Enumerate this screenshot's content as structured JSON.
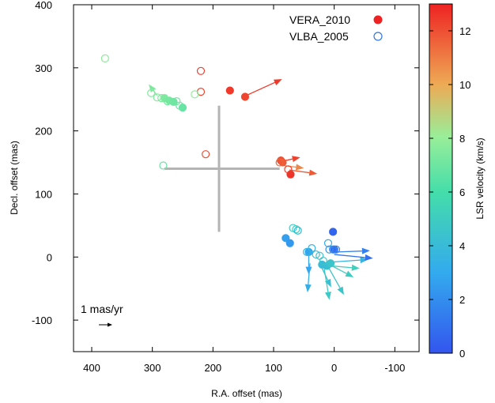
{
  "chart_data": {
    "type": "scatter",
    "xlabel": "R.A. offset (mas)",
    "ylabel": "Decl. offset (mas)",
    "xlim": [
      430,
      -140
    ],
    "ylim": [
      -150,
      400
    ],
    "xticks": [
      400,
      300,
      200,
      100,
      0,
      -100
    ],
    "yticks": [
      -100,
      0,
      100,
      200,
      300,
      400
    ],
    "xtick_labels": [
      "400",
      "300",
      "200",
      "100",
      "0",
      "-100"
    ],
    "ytick_labels": [
      "-100",
      "0",
      "100",
      "200",
      "300",
      "400"
    ],
    "colorbar": {
      "label": "LSR velocity (km/s)",
      "range": [
        0,
        13
      ],
      "ticks": [
        0,
        2,
        4,
        6,
        8,
        10,
        12
      ],
      "tick_labels": [
        "0",
        "2",
        "4",
        "6",
        "8",
        "10",
        "12"
      ]
    },
    "legend": {
      "position": "top-right",
      "entries": [
        {
          "label": "VERA_2010",
          "marker": "filled-circle",
          "color": "#ee2222"
        },
        {
          "label": "VLBA_2005",
          "marker": "open-circle",
          "color": "#3377dd"
        }
      ]
    },
    "scale_arrow": {
      "label": "1 mas/yr",
      "vector_mas_per_yr": 1
    },
    "cross": {
      "center": [
        190,
        140
      ],
      "ra_range": [
        280,
        90
      ],
      "dec_range": [
        40,
        240
      ],
      "color": "#b4b4b4"
    },
    "series": [
      {
        "name": "VERA_2010",
        "marker": "filled",
        "points": [
          {
            "x": 172,
            "y": 264,
            "v": 12.5
          },
          {
            "x": 147,
            "y": 254,
            "v": 12.2
          },
          {
            "x": 88,
            "y": 153,
            "v": 12.0
          },
          {
            "x": 85,
            "y": 150,
            "v": 11.8
          },
          {
            "x": 72,
            "y": 131,
            "v": 12.6
          },
          {
            "x": 80,
            "y": 30,
            "v": 2.6
          },
          {
            "x": 73,
            "y": 22,
            "v": 2.4
          },
          {
            "x": 42,
            "y": 8,
            "v": 2.8
          },
          {
            "x": 2,
            "y": 40,
            "v": 0.6
          },
          {
            "x": 0,
            "y": 12,
            "v": 0.8
          },
          {
            "x": 280,
            "y": 252,
            "v": 7.4
          },
          {
            "x": 272,
            "y": 248,
            "v": 7.2
          },
          {
            "x": 265,
            "y": 246,
            "v": 7.0
          },
          {
            "x": 250,
            "y": 237,
            "v": 6.8
          },
          {
            "x": 12,
            "y": -14,
            "v": 4.2
          },
          {
            "x": 6,
            "y": -10,
            "v": 4.5
          },
          {
            "x": 20,
            "y": -12,
            "v": 4.0
          }
        ]
      },
      {
        "name": "VLBA_2005",
        "marker": "open",
        "points": [
          {
            "x": 378,
            "y": 315,
            "v": 7.8
          },
          {
            "x": 220,
            "y": 295,
            "v": 12.4
          },
          {
            "x": 220,
            "y": 262,
            "v": 12.2
          },
          {
            "x": 302,
            "y": 260,
            "v": 7.6
          },
          {
            "x": 292,
            "y": 253,
            "v": 7.6
          },
          {
            "x": 285,
            "y": 252,
            "v": 7.4
          },
          {
            "x": 275,
            "y": 247,
            "v": 7.2
          },
          {
            "x": 260,
            "y": 247,
            "v": 7.1
          },
          {
            "x": 255,
            "y": 240,
            "v": 7.0
          },
          {
            "x": 230,
            "y": 258,
            "v": 7.9
          },
          {
            "x": 212,
            "y": 163,
            "v": 12.0
          },
          {
            "x": 282,
            "y": 145,
            "v": 6.8
          },
          {
            "x": 90,
            "y": 150,
            "v": 11.5
          },
          {
            "x": 76,
            "y": 139,
            "v": 12.4
          },
          {
            "x": 68,
            "y": 46,
            "v": 4.8
          },
          {
            "x": 63,
            "y": 44,
            "v": 5.2
          },
          {
            "x": 60,
            "y": 42,
            "v": 3.8
          },
          {
            "x": 45,
            "y": 8,
            "v": 3.6
          },
          {
            "x": 37,
            "y": 14,
            "v": 3.4
          },
          {
            "x": 30,
            "y": 4,
            "v": 4.0
          },
          {
            "x": 24,
            "y": 2,
            "v": 4.4
          },
          {
            "x": 18,
            "y": -6,
            "v": 4.6
          },
          {
            "x": 10,
            "y": 22,
            "v": 3.0
          },
          {
            "x": 8,
            "y": 12,
            "v": 2.2
          },
          {
            "x": 2,
            "y": 12,
            "v": 1.8
          },
          {
            "x": -3,
            "y": 12,
            "v": 1.4
          }
        ]
      }
    ],
    "motions": [
      {
        "x": 150,
        "y": 254,
        "dx": -64,
        "dy": 28,
        "v": 12.5
      },
      {
        "x": 86,
        "y": 152,
        "dx": -30,
        "dy": 6,
        "v": 12.3
      },
      {
        "x": 84,
        "y": 145,
        "dx": -34,
        "dy": -4,
        "v": 10.8
      },
      {
        "x": 74,
        "y": 138,
        "dx": -46,
        "dy": -6,
        "v": 11.8
      },
      {
        "x": 292,
        "y": 256,
        "dx": 14,
        "dy": 18,
        "v": 7.4
      },
      {
        "x": 42,
        "y": 10,
        "dx": 0,
        "dy": -38,
        "v": 2.8
      },
      {
        "x": 40,
        "y": -10,
        "dx": 4,
        "dy": -46,
        "v": 3.2
      },
      {
        "x": 25,
        "y": -8,
        "dx": -20,
        "dy": -40,
        "v": 4.2
      },
      {
        "x": 18,
        "y": -10,
        "dx": -10,
        "dy": -58,
        "v": 4.8
      },
      {
        "x": 12,
        "y": -12,
        "dx": -28,
        "dy": -48,
        "v": 4.6
      },
      {
        "x": 8,
        "y": -12,
        "dx": -40,
        "dy": -20,
        "v": 5.0
      },
      {
        "x": 6,
        "y": -14,
        "dx": -48,
        "dy": -4,
        "v": 5.2
      },
      {
        "x": 4,
        "y": -8,
        "dx": -60,
        "dy": 4,
        "v": 3.6
      },
      {
        "x": 0,
        "y": 4,
        "dx": -64,
        "dy": -6,
        "v": 1.0
      },
      {
        "x": -5,
        "y": 8,
        "dx": -54,
        "dy": 2,
        "v": 1.5
      }
    ]
  }
}
